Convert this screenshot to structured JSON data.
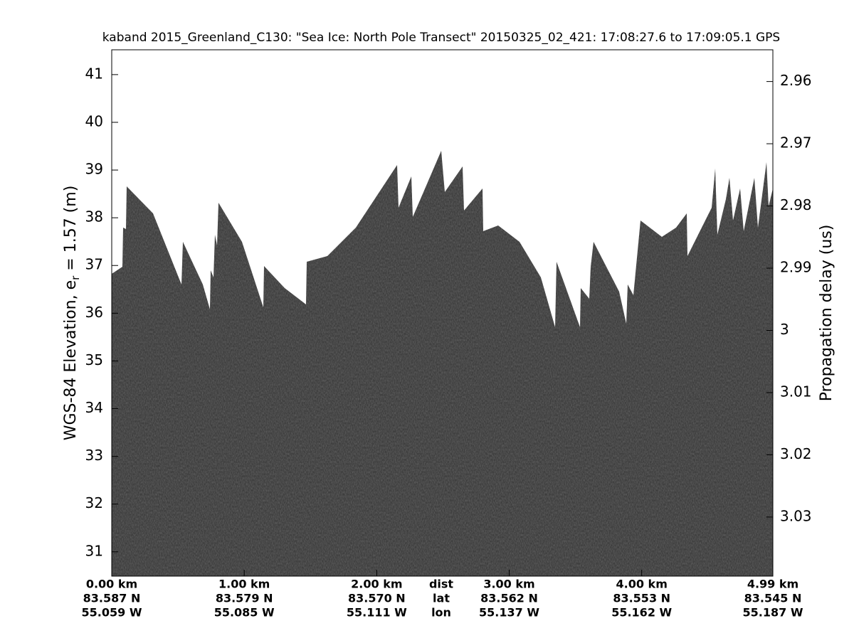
{
  "chart_data": {
    "type": "image",
    "title": "kaband 2015_Greenland_C130: \"Sea Ice: North Pole Transect\"  20150325_02_421: 17:08:27.6 to 17:09:05.1 GPS",
    "ylabel_parts": [
      "WGS-84 Elevation, e",
      "r",
      " = 1.57 (m)"
    ],
    "y2label": "Propagation delay (us)",
    "xlim": [
      0,
      4.99
    ],
    "xticks": [
      {
        "value": 0,
        "label": "0.00 km"
      },
      {
        "value": 1,
        "label": "1.00 km"
      },
      {
        "value": 2,
        "label": "2.00 km"
      },
      {
        "value": 3,
        "label": "3.00 km"
      },
      {
        "value": 4,
        "label": "4.00 km"
      },
      {
        "value": 4.99,
        "label": "4.99 km"
      }
    ],
    "lat_labels": [
      "83.587 N",
      "83.579 N",
      "83.570 N",
      "83.562 N",
      "83.553 N",
      "83.545 N"
    ],
    "lon_labels": [
      "55.059 W",
      "55.085 W",
      "55.111 W",
      "55.137 W",
      "55.162 W",
      "55.187 W"
    ],
    "row_labels": [
      "dist",
      "lat",
      "lon"
    ],
    "ylim": [
      30.49,
      41.52
    ],
    "yticks": [
      31,
      32,
      33,
      34,
      35,
      36,
      37,
      38,
      39,
      40,
      41
    ],
    "y2lim": [
      3.0395,
      2.9549
    ],
    "y2ticks": [
      2.96,
      2.97,
      2.98,
      2.99,
      3,
      3.01,
      3.02,
      3.03
    ]
  }
}
